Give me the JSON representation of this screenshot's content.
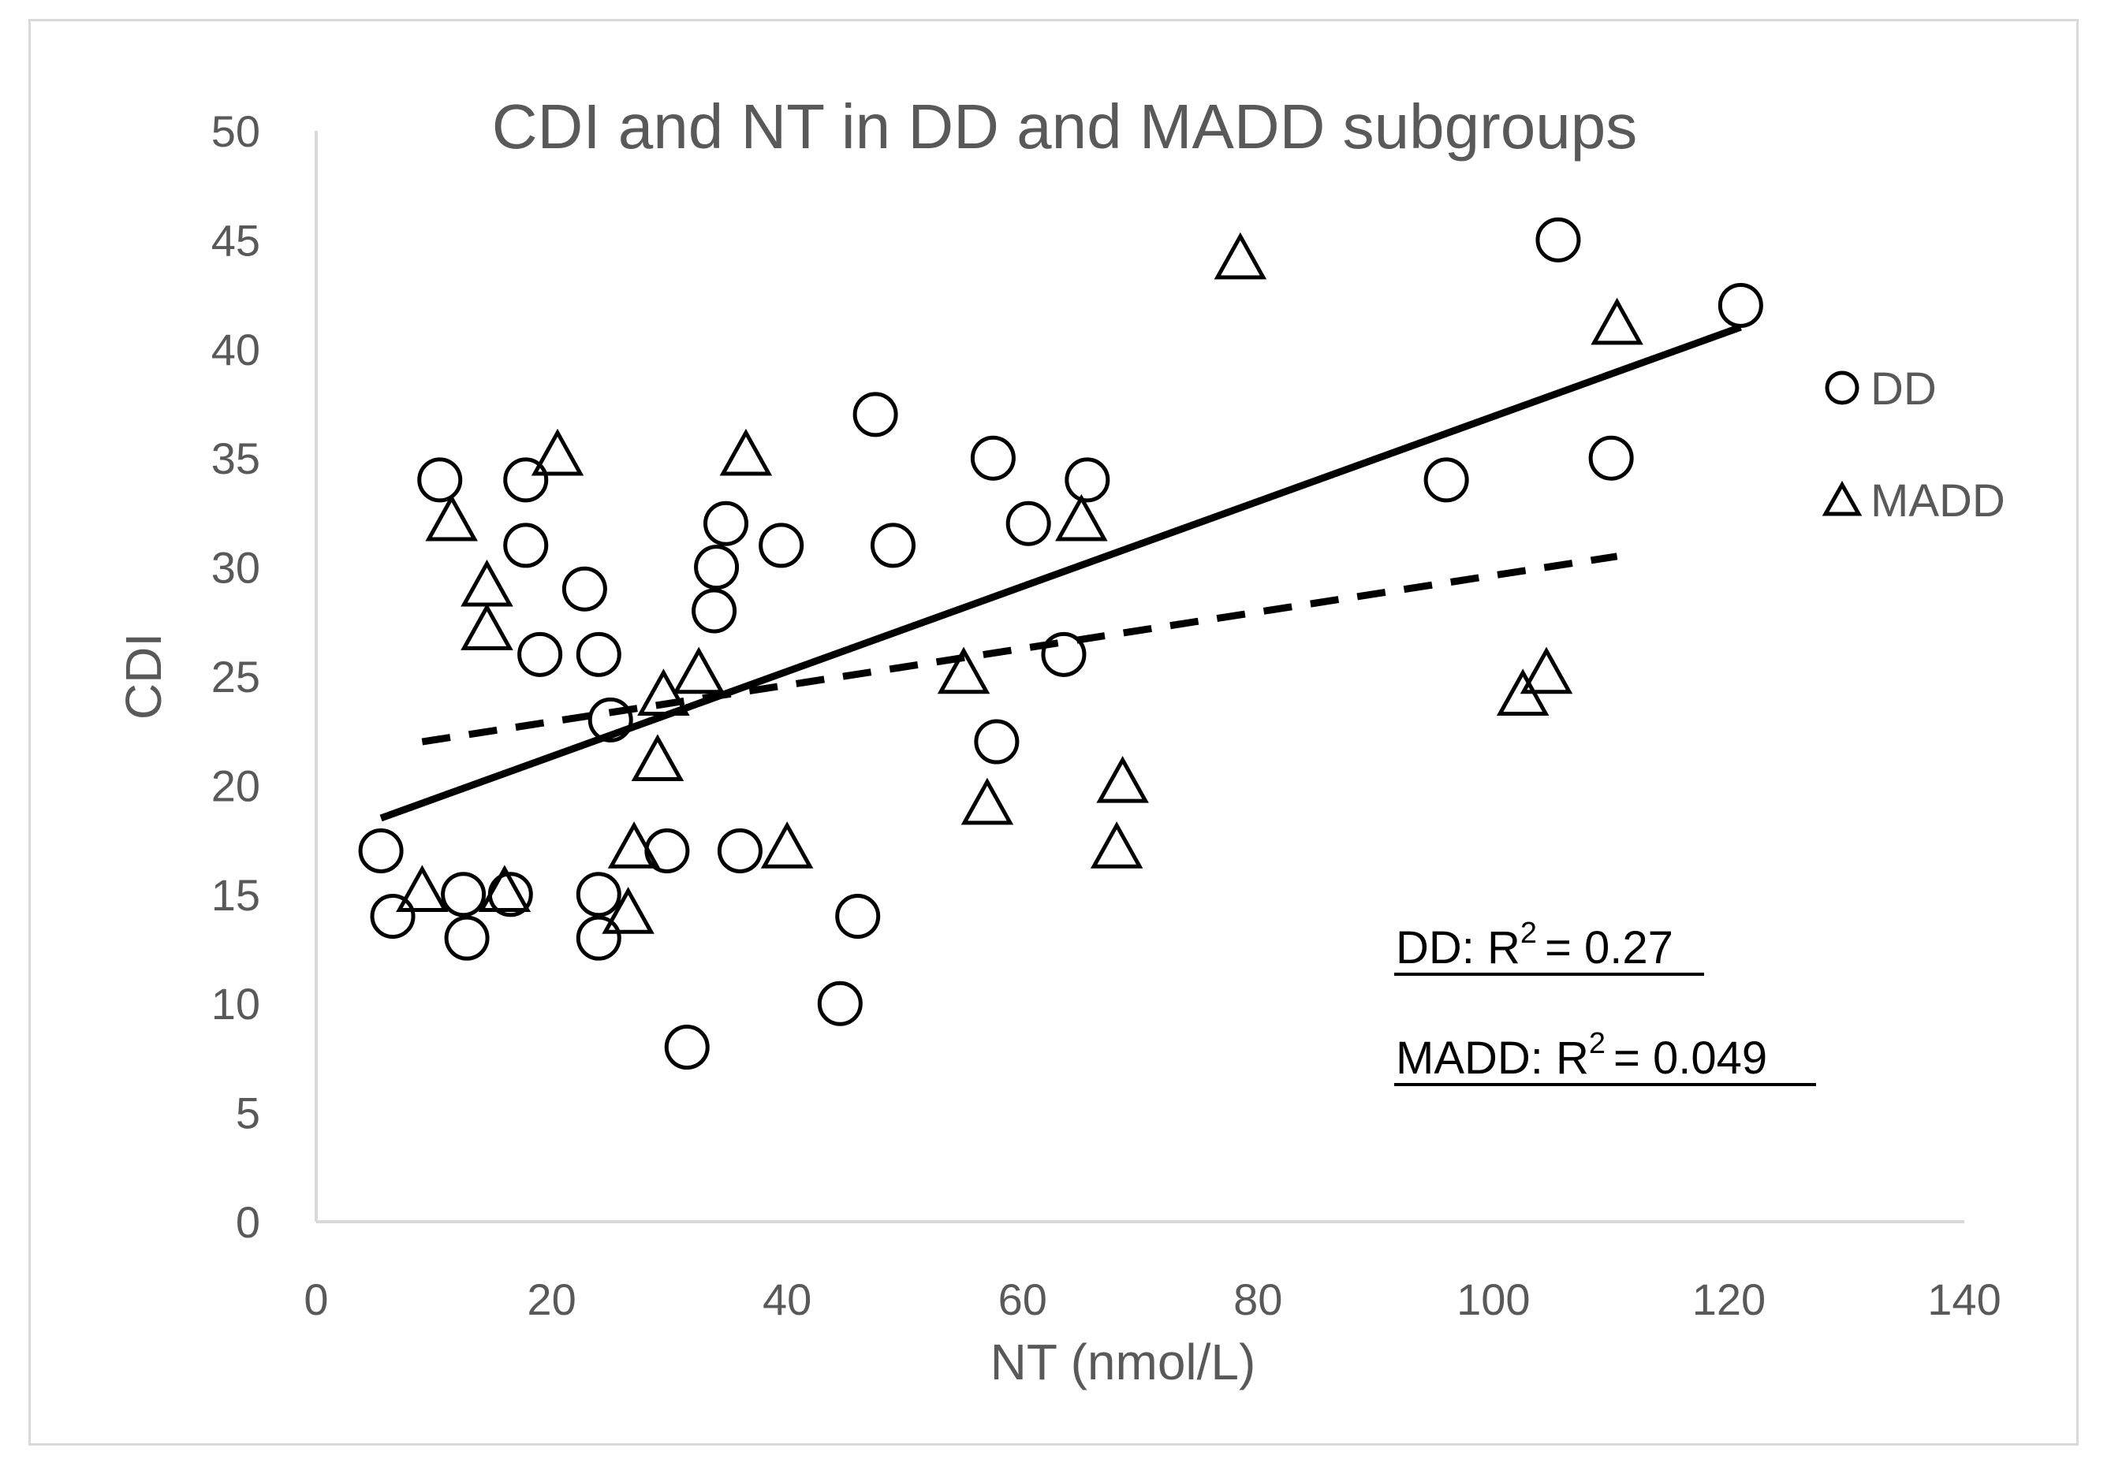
{
  "chart_data": {
    "type": "scatter",
    "title": "CDI and NT in DD and MADD subgroups",
    "xlabel": "NT (nmol/L)",
    "ylabel": "CDI",
    "xlim": [
      0,
      140
    ],
    "ylim": [
      0,
      50
    ],
    "x_ticks": [
      "0",
      "20",
      "40",
      "60",
      "80",
      "100",
      "120",
      "140"
    ],
    "y_ticks": [
      "0",
      "5",
      "10",
      "15",
      "20",
      "25",
      "30",
      "35",
      "40",
      "45",
      "50"
    ],
    "grid": false,
    "legend_position": "right",
    "series": [
      {
        "name": "DD",
        "marker": "circle",
        "points": [
          [
            5.5,
            17
          ],
          [
            6.5,
            14
          ],
          [
            10.5,
            34
          ],
          [
            12.5,
            15
          ],
          [
            12.8,
            13
          ],
          [
            16.5,
            15
          ],
          [
            17.8,
            34
          ],
          [
            17.8,
            31
          ],
          [
            19,
            26
          ],
          [
            22.8,
            29
          ],
          [
            24,
            26
          ],
          [
            24,
            15
          ],
          [
            24,
            13
          ],
          [
            25,
            23
          ],
          [
            29.8,
            17
          ],
          [
            31.5,
            8
          ],
          [
            33.8,
            28
          ],
          [
            34,
            30
          ],
          [
            34.8,
            32
          ],
          [
            36,
            17
          ],
          [
            39.5,
            31
          ],
          [
            44.5,
            10
          ],
          [
            46,
            14
          ],
          [
            47.5,
            37
          ],
          [
            49,
            31
          ],
          [
            57.5,
            35
          ],
          [
            57.8,
            22
          ],
          [
            60.5,
            32
          ],
          [
            63.5,
            26
          ],
          [
            65.5,
            34
          ],
          [
            96,
            34
          ],
          [
            105.5,
            45
          ],
          [
            110,
            35
          ],
          [
            121,
            42
          ]
        ]
      },
      {
        "name": "MADD",
        "marker": "triangle",
        "points": [
          [
            9,
            15
          ],
          [
            11.5,
            32
          ],
          [
            14.5,
            29
          ],
          [
            14.5,
            27
          ],
          [
            16,
            15
          ],
          [
            20.5,
            35
          ],
          [
            26.5,
            14
          ],
          [
            27,
            17
          ],
          [
            29,
            21
          ],
          [
            29.5,
            24
          ],
          [
            32.5,
            25
          ],
          [
            36.5,
            35
          ],
          [
            40,
            17
          ],
          [
            55,
            25
          ],
          [
            57,
            19
          ],
          [
            65,
            32
          ],
          [
            68,
            17
          ],
          [
            68.5,
            20
          ],
          [
            78.5,
            44
          ],
          [
            102.5,
            24
          ],
          [
            104.5,
            25
          ],
          [
            110.5,
            41
          ]
        ]
      }
    ],
    "trendlines": [
      {
        "series": "DD",
        "style": "solid",
        "x": [
          5.5,
          121
        ],
        "y": [
          18.5,
          41
        ]
      },
      {
        "series": "MADD",
        "style": "dashed",
        "x": [
          9,
          110.5
        ],
        "y": [
          22,
          30.5
        ]
      }
    ],
    "annotations": {
      "dd_label": "DD: R",
      "dd_value": "= 0.27",
      "madd_label": "MADD: R",
      "madd_value": "= 0.049",
      "superscript": "2"
    }
  },
  "colors": {
    "text": "#595959",
    "axis": "#d9d9d9",
    "marks": "#000000"
  }
}
